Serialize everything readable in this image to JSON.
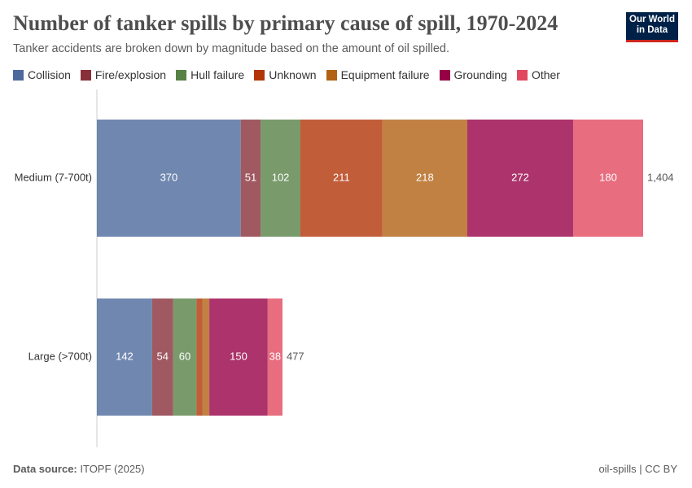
{
  "chart_data": {
    "type": "stacked-bar-horizontal",
    "title": "Number of tanker spills by primary cause of spill, 1970-2024",
    "subtitle": "Tanker accidents are broken down by magnitude based on the amount of oil spilled.",
    "categories": [
      "Medium (7-700t)",
      "Large (>700t)"
    ],
    "series": [
      {
        "name": "Collision",
        "color": "#4c6a9c",
        "values": [
          370,
          142
        ]
      },
      {
        "name": "Fire/explosion",
        "color": "#883039",
        "values": [
          51,
          54
        ]
      },
      {
        "name": "Hull failure",
        "color": "#578145",
        "values": [
          102,
          60
        ]
      },
      {
        "name": "Unknown",
        "color": "#b13507",
        "values": [
          211,
          15
        ]
      },
      {
        "name": "Equipment failure",
        "color": "#b16214",
        "values": [
          218,
          18
        ]
      },
      {
        "name": "Grounding",
        "color": "#970046",
        "values": [
          272,
          150
        ]
      },
      {
        "name": "Other",
        "color": "#e1485f",
        "values": [
          180,
          38
        ]
      }
    ],
    "totals": [
      {
        "value": 1404,
        "label": "1,404"
      },
      477
    ],
    "xlim": [
      0,
      1404
    ],
    "source_label": "Data source:",
    "source": "ITOPF (2025)",
    "footer_right": "oil-spills | CC BY",
    "logo": "Our World in Data"
  }
}
